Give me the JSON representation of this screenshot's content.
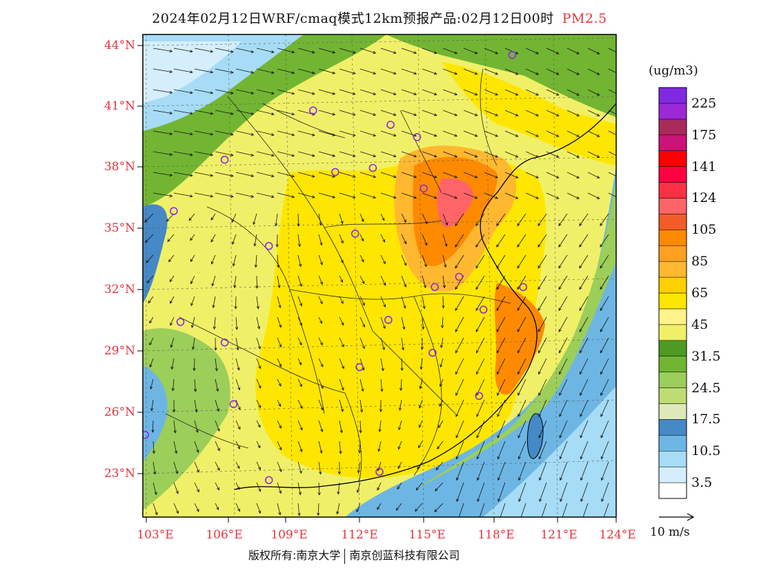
{
  "title": {
    "main": "2024年02月12日WRF/cmaq模式12km预报产品:02月12日00时",
    "pollutant": "PM2.5"
  },
  "axes": {
    "lat_labels": [
      "44°N",
      "41°N",
      "38°N",
      "35°N",
      "32°N",
      "29°N",
      "26°N",
      "23°N"
    ],
    "lon_labels": [
      "103°E",
      "106°E",
      "109°E",
      "112°E",
      "115°E",
      "118°E",
      "121°E",
      "124°E"
    ]
  },
  "colorbar": {
    "unit": "(ug/m3)",
    "colors": [
      "#ffffff",
      "#d4eefc",
      "#a6dcf5",
      "#6db6e4",
      "#4589c6",
      "#dfe8b8",
      "#bfdc74",
      "#9cce5a",
      "#72b533",
      "#4e9a22",
      "#f0f068",
      "#fff28a",
      "#ffe600",
      "#ffd000",
      "#ffb830",
      "#ffa020",
      "#ff8a00",
      "#f25c28",
      "#ff6468",
      "#ff3046",
      "#ff0040",
      "#ff0000",
      "#c81478",
      "#a82a5a",
      "#9c28d8",
      "#7f2ae0"
    ],
    "labels": [
      "3.5",
      "10.5",
      "17.5",
      "24.5",
      "31.5",
      "45",
      "65",
      "85",
      "105",
      "124",
      "141",
      "175",
      "225"
    ]
  },
  "wind_reference": "10 m/s",
  "copyright": {
    "left": "版权所有:南京大学",
    "right": "南京创蓝科技有限公司"
  },
  "map_data": {
    "region": "East China",
    "lat_range": [
      21,
      44.5
    ],
    "lon_range": [
      102.6,
      124
    ],
    "city_markers": [
      [
        119.3,
        43.5
      ],
      [
        110.3,
        40.8
      ],
      [
        113.8,
        40.1
      ],
      [
        115.0,
        39.5
      ],
      [
        106.3,
        38.4
      ],
      [
        111.3,
        37.8
      ],
      [
        113.0,
        38.0
      ],
      [
        115.3,
        37.0
      ],
      [
        104.0,
        35.9
      ],
      [
        112.2,
        34.8
      ],
      [
        108.3,
        34.2
      ],
      [
        116.9,
        32.7
      ],
      [
        115.8,
        32.2
      ],
      [
        119.8,
        32.2
      ],
      [
        118.0,
        31.1
      ],
      [
        104.3,
        30.5
      ],
      [
        113.7,
        30.6
      ],
      [
        106.3,
        29.5
      ],
      [
        115.7,
        29.0
      ],
      [
        112.4,
        28.3
      ],
      [
        117.8,
        26.9
      ],
      [
        106.7,
        26.5
      ],
      [
        102.7,
        25.0
      ],
      [
        108.3,
        22.8
      ],
      [
        113.3,
        23.2
      ]
    ]
  }
}
